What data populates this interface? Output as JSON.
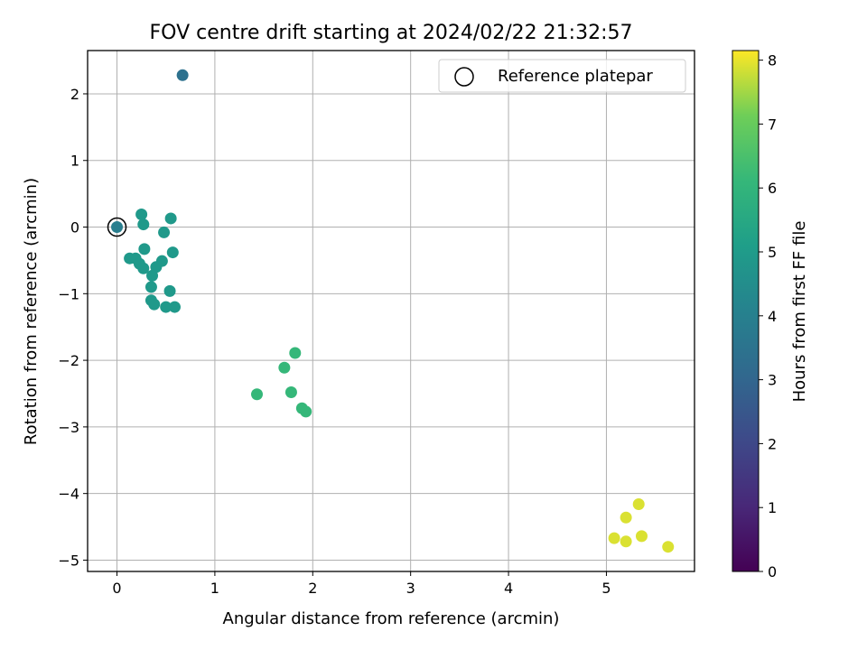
{
  "chart_data": {
    "type": "scatter",
    "title": "FOV centre drift starting at 2024/02/22 21:32:57",
    "xlabel": "Angular distance from reference (arcmin)",
    "ylabel": "Rotation from reference (arcmin)",
    "xlim": [
      -0.3,
      5.9
    ],
    "ylim": [
      -5.17,
      2.65
    ],
    "xticks": [
      0,
      1,
      2,
      3,
      4,
      5
    ],
    "yticks": [
      -5,
      -4,
      -3,
      -2,
      -1,
      0,
      1,
      2
    ],
    "grid": true,
    "legend": {
      "position": "top-right",
      "entries": [
        "Reference platepar"
      ]
    },
    "colorbar": {
      "label": "Hours from first FF file",
      "range": [
        0,
        8.15
      ],
      "ticks": [
        0,
        1,
        2,
        3,
        4,
        5,
        6,
        7,
        8
      ],
      "colormap": "viridis"
    },
    "reference_point": {
      "x": 0,
      "y": 0
    },
    "points": [
      {
        "x": 0.0,
        "y": 0.0,
        "c": 3.9
      },
      {
        "x": 0.67,
        "y": 2.28,
        "c": 3.4
      },
      {
        "x": 0.25,
        "y": 0.19,
        "c": 4.9
      },
      {
        "x": 0.27,
        "y": 0.04,
        "c": 4.9
      },
      {
        "x": 0.55,
        "y": 0.13,
        "c": 4.9
      },
      {
        "x": 0.48,
        "y": -0.08,
        "c": 4.9
      },
      {
        "x": 0.28,
        "y": -0.33,
        "c": 4.9
      },
      {
        "x": 0.57,
        "y": -0.38,
        "c": 4.9
      },
      {
        "x": 0.13,
        "y": -0.47,
        "c": 4.9
      },
      {
        "x": 0.19,
        "y": -0.47,
        "c": 4.9
      },
      {
        "x": 0.23,
        "y": -0.55,
        "c": 4.9
      },
      {
        "x": 0.27,
        "y": -0.62,
        "c": 4.9
      },
      {
        "x": 0.4,
        "y": -0.6,
        "c": 4.9
      },
      {
        "x": 0.46,
        "y": -0.51,
        "c": 4.9
      },
      {
        "x": 0.36,
        "y": -0.73,
        "c": 4.9
      },
      {
        "x": 0.35,
        "y": -0.9,
        "c": 4.9
      },
      {
        "x": 0.54,
        "y": -0.96,
        "c": 4.9
      },
      {
        "x": 0.35,
        "y": -1.1,
        "c": 4.9
      },
      {
        "x": 0.38,
        "y": -1.16,
        "c": 4.9
      },
      {
        "x": 0.5,
        "y": -1.2,
        "c": 4.9
      },
      {
        "x": 0.59,
        "y": -1.2,
        "c": 4.9
      },
      {
        "x": 1.82,
        "y": -1.89,
        "c": 6.1
      },
      {
        "x": 1.71,
        "y": -2.11,
        "c": 6.1
      },
      {
        "x": 1.43,
        "y": -2.51,
        "c": 6.1
      },
      {
        "x": 1.78,
        "y": -2.48,
        "c": 6.1
      },
      {
        "x": 1.89,
        "y": -2.72,
        "c": 6.1
      },
      {
        "x": 1.93,
        "y": -2.77,
        "c": 6.1
      },
      {
        "x": 5.33,
        "y": -4.16,
        "c": 7.9
      },
      {
        "x": 5.2,
        "y": -4.36,
        "c": 7.9
      },
      {
        "x": 5.08,
        "y": -4.67,
        "c": 7.9
      },
      {
        "x": 5.2,
        "y": -4.72,
        "c": 7.9
      },
      {
        "x": 5.36,
        "y": -4.64,
        "c": 7.9
      },
      {
        "x": 5.63,
        "y": -4.8,
        "c": 7.9
      }
    ]
  }
}
